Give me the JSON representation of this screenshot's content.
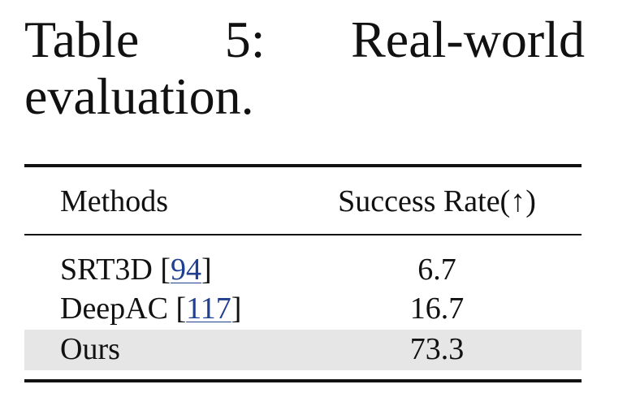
{
  "caption": {
    "label": "Table",
    "number": "5:",
    "title_word1": "Real-world",
    "title_word2": "evaluation."
  },
  "table": {
    "headers": {
      "method": "Methods",
      "rate": "Success Rate(↑)"
    },
    "rows": [
      {
        "method": "SRT3D",
        "cite": "94",
        "rate": "6.7",
        "highlight": false
      },
      {
        "method": "DeepAC",
        "cite": "117",
        "rate": "16.7",
        "highlight": false
      },
      {
        "method": "Ours",
        "cite": "",
        "rate": "73.3",
        "highlight": true
      }
    ],
    "highlight_color": "#e6e6e6",
    "citation_color": "#1f3f8f"
  }
}
